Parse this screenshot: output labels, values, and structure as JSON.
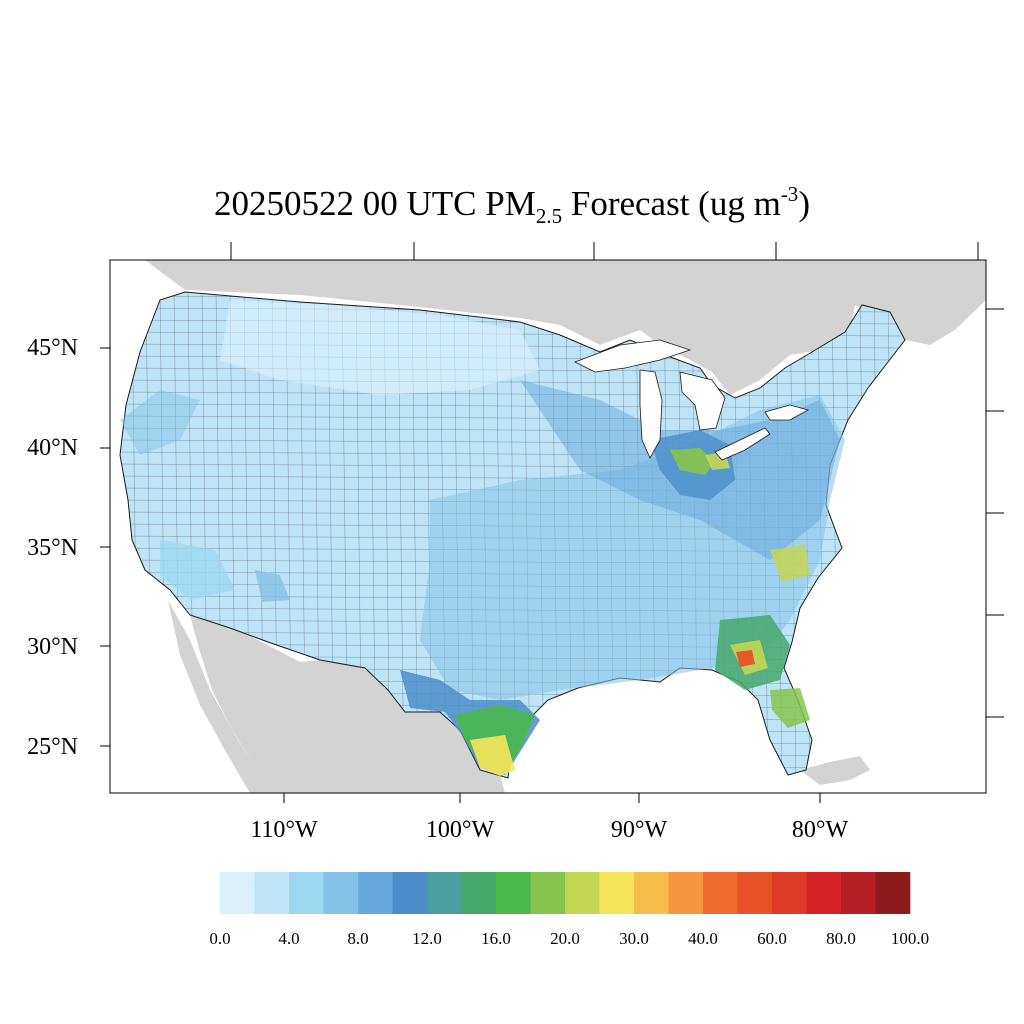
{
  "title": {
    "prefix": "20250522 00 UTC PM",
    "subscript": "2.5",
    "middle": " Forecast (ug m",
    "superscript": "-3",
    "suffix": ")"
  },
  "axes": {
    "lat_labels": [
      "45°N",
      "40°N",
      "35°N",
      "30°N",
      "25°N"
    ],
    "lon_labels": [
      "110°W",
      "100°W",
      "90°W",
      "80°W"
    ]
  },
  "colorbar": {
    "colors": [
      "#dcf0fa",
      "#bde4f7",
      "#9dd8f3",
      "#84c1e6",
      "#68a8dc",
      "#4c8dc9",
      "#4a9e9d",
      "#48a86c",
      "#4bb84b",
      "#86c54d",
      "#c3d654",
      "#f6e55a",
      "#f7bd4a",
      "#f5953e",
      "#f06c2d",
      "#e85228",
      "#dd3a27",
      "#d42227",
      "#b51f24",
      "#8f1a1c"
    ],
    "labels": [
      "0.0",
      "4.0",
      "8.0",
      "12.0",
      "16.0",
      "20.0",
      "30.0",
      "40.0",
      "60.0",
      "80.0",
      "100.0"
    ]
  },
  "map": {
    "land_outside_color": "#d3d3d3",
    "water_color": "#ffffff",
    "background_concentration_color": "#bde4f7",
    "hotspot_color": "#e85228"
  }
}
